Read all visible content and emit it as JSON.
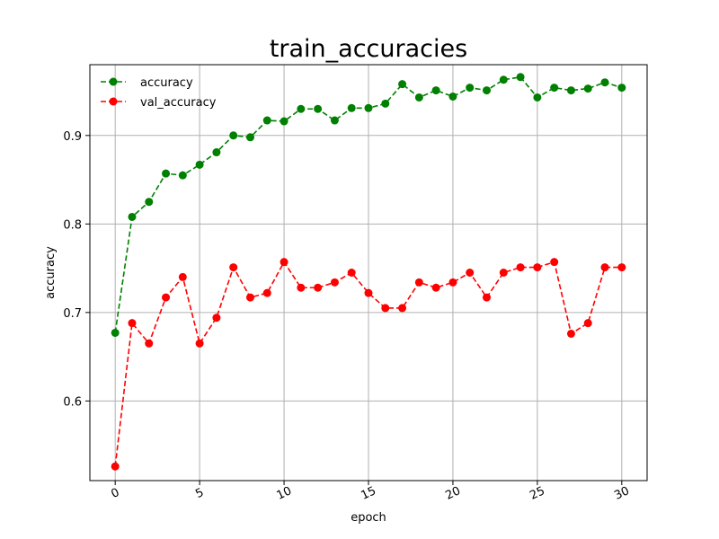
{
  "chart_data": {
    "type": "line",
    "title": "train_accuracies",
    "xlabel": "epoch",
    "ylabel": "accuracy",
    "x": [
      0,
      1,
      2,
      3,
      4,
      5,
      6,
      7,
      8,
      9,
      10,
      11,
      12,
      13,
      14,
      15,
      16,
      17,
      18,
      19,
      20,
      21,
      22,
      23,
      24,
      25,
      26,
      27,
      28,
      29,
      30
    ],
    "xticks": [
      0,
      5,
      10,
      15,
      20,
      25,
      30
    ],
    "yticks": [
      0.6,
      0.7,
      0.8,
      0.9
    ],
    "ylim": [
      0.51,
      0.98
    ],
    "xlim": [
      -1.5,
      31.5
    ],
    "grid": true,
    "legend_position": "top-left",
    "series": [
      {
        "name": "accuracy",
        "color": "#008000",
        "style": "dashed-circle",
        "values": [
          0.677,
          0.808,
          0.825,
          0.857,
          0.855,
          0.867,
          0.881,
          0.9,
          0.898,
          0.917,
          0.916,
          0.93,
          0.93,
          0.917,
          0.931,
          0.931,
          0.936,
          0.958,
          0.943,
          0.951,
          0.944,
          0.954,
          0.951,
          0.963,
          0.966,
          0.943,
          0.954,
          0.951,
          0.953,
          0.96,
          0.954
        ]
      },
      {
        "name": "val_accuracy",
        "color": "#ff0000",
        "style": "dashed-circle",
        "values": [
          0.526,
          0.688,
          0.665,
          0.717,
          0.74,
          0.665,
          0.694,
          0.751,
          0.717,
          0.722,
          0.757,
          0.728,
          0.728,
          0.734,
          0.745,
          0.722,
          0.705,
          0.705,
          0.734,
          0.728,
          0.734,
          0.745,
          0.717,
          0.745,
          0.751,
          0.751,
          0.757,
          0.676,
          0.688,
          0.751,
          0.751
        ]
      }
    ]
  }
}
